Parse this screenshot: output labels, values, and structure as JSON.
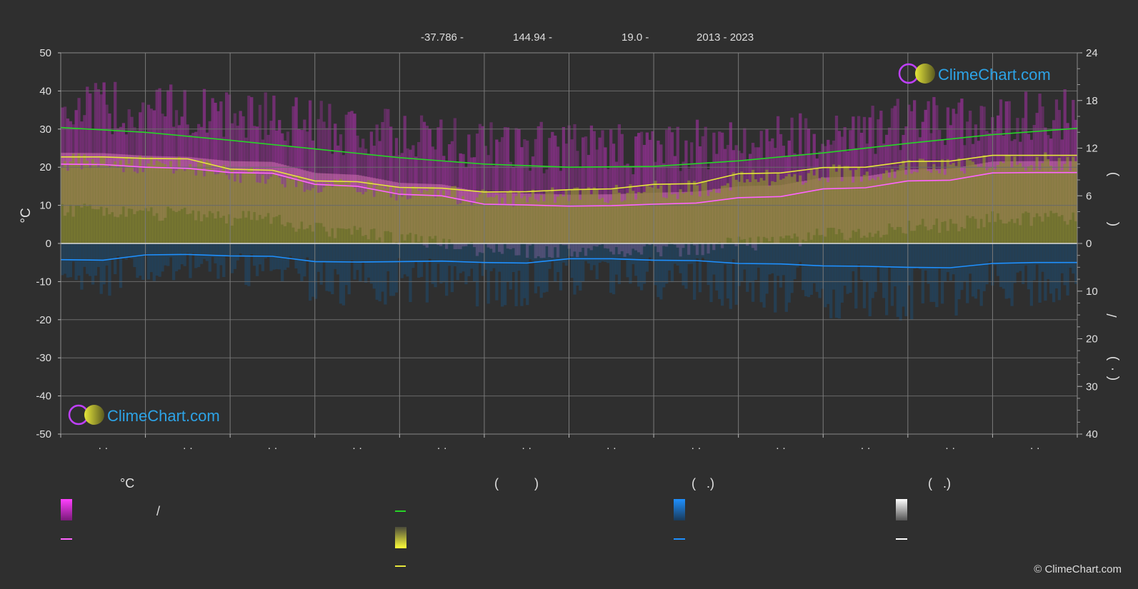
{
  "header": {
    "lat": "-37.786 -",
    "lon": "144.94 -",
    "elev": "19.0 -",
    "years": "2013 - 2023"
  },
  "brand": {
    "name": "ClimeChart.com",
    "copyright": "© ClimeChart.com"
  },
  "colors": {
    "background": "#2f2f2f",
    "grid": "#6a6a6a",
    "daylight": "#27d427",
    "sunshine": "#e6e63a",
    "max_temp": "#ff64ff",
    "precip": "#1e90ff",
    "brand": "#2da3e6"
  },
  "legend": {
    "col1_header": "°C",
    "col1_slash": "/",
    "col2_header": "(          )",
    "col3_header": "(   .)",
    "col4_header": "(   .)"
  },
  "chart_data": {
    "type": "line",
    "left_axis": {
      "label": "°C",
      "range": [
        -50,
        50
      ],
      "ticks": [
        50,
        40,
        30,
        20,
        10,
        0,
        -10,
        -20,
        -30,
        -40,
        -50
      ]
    },
    "right_axis_top": {
      "range": [
        0,
        24
      ],
      "ticks": [
        24,
        18,
        12,
        6,
        0
      ],
      "label_chars": [
        ")",
        "("
      ]
    },
    "right_axis_bottom": {
      "range": [
        0,
        40
      ],
      "ticks": [
        10,
        20,
        30,
        40
      ],
      "label_chars": [
        "/",
        ")",
        "·",
        "("
      ]
    },
    "x_tick_label": "· ·",
    "x_months": 12,
    "series": [
      {
        "key": "daylight",
        "color": "#27d427",
        "unit": "hours",
        "x": [
          0,
          1,
          2,
          3,
          4,
          5,
          6,
          7,
          8,
          9,
          10,
          11,
          12
        ],
        "values": [
          14.6,
          14.0,
          13.0,
          11.9,
          10.8,
          10.0,
          9.6,
          9.7,
          10.4,
          11.4,
          12.6,
          13.7,
          14.5
        ]
      },
      {
        "key": "sunshine",
        "color": "#e6e63a",
        "unit": "°C",
        "x": [
          0,
          0.5,
          1,
          1.5,
          2,
          2.5,
          3,
          3.5,
          4,
          4.5,
          5,
          5.5,
          6,
          6.5,
          7,
          7.5,
          8,
          8.5,
          9,
          9.5,
          10,
          10.5,
          11,
          11.5,
          12
        ],
        "values": [
          22.7,
          22.7,
          22.3,
          22.2,
          19.5,
          19.2,
          16.4,
          16.2,
          14.7,
          14.5,
          13.5,
          13.6,
          14.1,
          14.3,
          15.5,
          15.7,
          18.3,
          18.5,
          19.9,
          20.0,
          21.5,
          21.6,
          23.1,
          23.1,
          23.1
        ]
      },
      {
        "key": "max_temp",
        "color": "#ff64ff",
        "unit": "°C",
        "x": [
          0,
          0.5,
          1,
          1.5,
          2,
          2.5,
          3,
          3.5,
          4,
          4.5,
          5,
          5.5,
          6,
          6.5,
          7,
          7.5,
          8,
          8.5,
          9,
          9.5,
          10,
          10.5,
          11,
          11.5,
          12
        ],
        "values": [
          20.8,
          20.7,
          20.0,
          19.7,
          18.6,
          18.4,
          15.5,
          15.0,
          12.9,
          12.5,
          10.3,
          10.1,
          9.8,
          9.9,
          10.3,
          10.6,
          12.0,
          12.3,
          14.3,
          14.6,
          16.4,
          16.6,
          18.5,
          18.6,
          18.6
        ]
      },
      {
        "key": "precip",
        "color": "#1e90ff",
        "unit": "mm",
        "x": [
          0,
          0.5,
          1,
          1.5,
          2,
          2.5,
          3,
          3.5,
          4,
          4.5,
          5,
          5.5,
          6,
          6.5,
          7,
          7.5,
          8,
          8.5,
          9,
          9.5,
          10,
          10.5,
          11,
          11.5,
          12
        ],
        "values": [
          3.4,
          3.5,
          2.4,
          2.3,
          2.6,
          2.7,
          3.8,
          3.9,
          3.8,
          3.7,
          4.0,
          4.1,
          3.2,
          3.2,
          3.5,
          3.6,
          4.2,
          4.3,
          4.7,
          4.8,
          5.0,
          5.1,
          4.2,
          4.0,
          4.0
        ]
      }
    ]
  }
}
